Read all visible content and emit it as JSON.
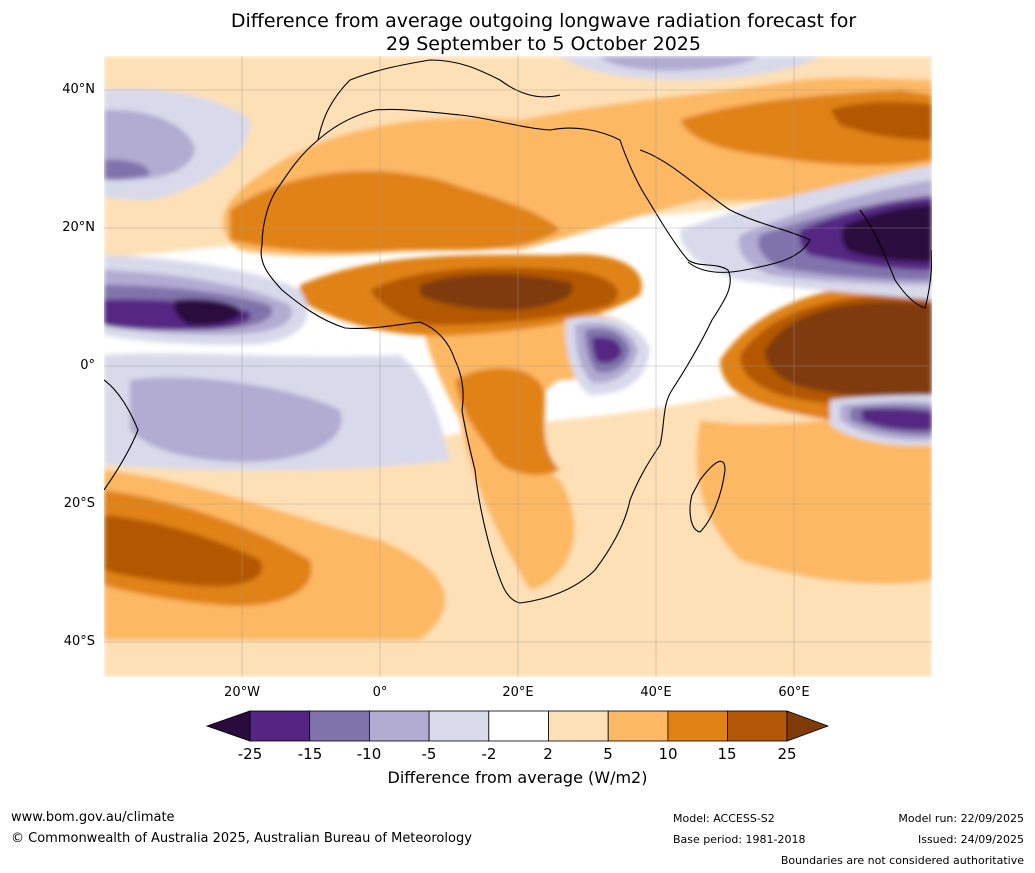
{
  "title_line1": "Difference from average outgoing longwave radiation forecast for",
  "title_line2": "29 September to 5 October 2025",
  "lat_ticks": [
    "40°N",
    "20°N",
    "0°",
    "20°S",
    "40°S"
  ],
  "lon_ticks": [
    "20°W",
    "0°",
    "20°E",
    "40°E",
    "60°E"
  ],
  "map_extent": {
    "lon_min": -40,
    "lon_max": 80,
    "lat_min": -45,
    "lat_max": 45
  },
  "colorbar": {
    "ticks": [
      "-25",
      "-15",
      "-10",
      "-5",
      "-2",
      "2",
      "5",
      "10",
      "15",
      "25"
    ],
    "colors": [
      "#2b0a3d",
      "#542582",
      "#8073ac",
      "#b2abd2",
      "#d8daeb",
      "#ffffff",
      "#fee0b6",
      "#fdb863",
      "#e08214",
      "#b35806",
      "#7f3b08"
    ],
    "label": "Difference from average (W/m2)"
  },
  "anomaly_regions": [
    {
      "region": "northern Indian Ocean",
      "lon": 74,
      "lat": 2,
      "value": 25
    },
    {
      "region": "Arabian Sea",
      "lon": 75,
      "lat": 20,
      "value": -25
    },
    {
      "region": "tropical eastern Atlantic",
      "lon": -21,
      "lat": 8,
      "value": -25
    },
    {
      "region": "Sahel band",
      "lon": 18,
      "lat": 10,
      "value": 25
    },
    {
      "region": "Lake Victoria",
      "lon": 33,
      "lat": 2,
      "value": -15
    },
    {
      "region": "South Atlantic",
      "lon": -32,
      "lat": -28,
      "value": 15
    },
    {
      "region": "Congo basin",
      "lon": 21,
      "lat": -6,
      "value": 15
    },
    {
      "region": "Sahara",
      "lon": 8,
      "lat": 25,
      "value": 10
    },
    {
      "region": "Iran",
      "lon": 58,
      "lat": 33,
      "value": 10
    },
    {
      "region": "South Indian Ocean",
      "lon": 60,
      "lat": -15,
      "value": 5
    },
    {
      "region": "southern Indian Ocean",
      "lon": 70,
      "lat": -7,
      "value": -15
    }
  ],
  "footer": {
    "url": "www.bom.gov.au/climate",
    "copyright": "© Commonwealth of Australia 2025, Australian Bureau of Meteorology",
    "model": "Model: ACCESS-S2",
    "base_period": "Base period: 1981-2018",
    "model_run": "Model run: 22/09/2025",
    "issued": "Issued: 24/09/2025",
    "disclaimer": "Boundaries are not considered authoritative"
  }
}
